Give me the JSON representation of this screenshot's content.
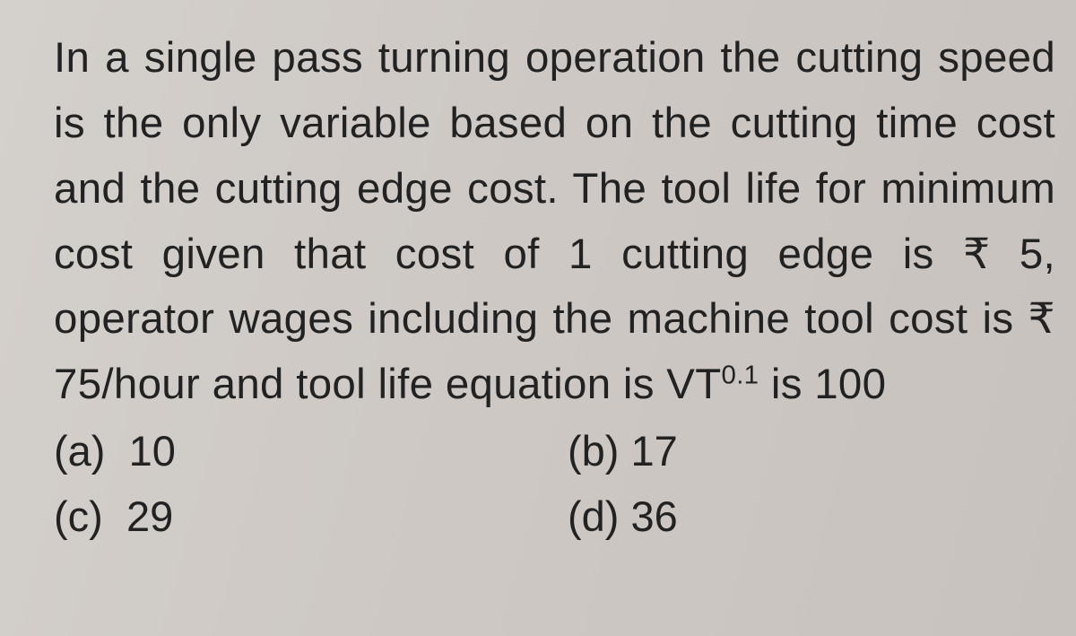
{
  "page": {
    "background_color": "#cec9c5",
    "text_color": "#222222",
    "font_family": "Arial",
    "font_size_pt": 35
  },
  "question": {
    "text_html": "In a single pass turning operation the cutting speed is the only variable based on the cutting time cost and the cutting edge cost. The tool life for minimum cost given that cost of 1 cutting edge is ₹ 5, operator wages including the machine tool cost is ₹ 75/hour and tool life equation is VT<sup>0.1</sup> is 100"
  },
  "options": {
    "a": "10",
    "b": "17",
    "c": "29",
    "d": "36"
  },
  "labels": {
    "a": "(a)",
    "b": "(b)",
    "c": "(c)",
    "d": "(d)"
  }
}
